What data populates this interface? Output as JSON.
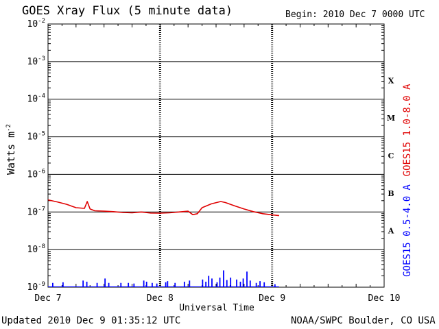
{
  "header": {
    "title": "GOES Xray Flux (5 minute data)",
    "begin": "Begin:  2010 Dec 7 0000 UTC"
  },
  "footer": {
    "updated": "Updated 2010 Dec  9 01:35:12 UTC",
    "source": "NOAA/SWPC Boulder, CO USA"
  },
  "colors": {
    "long_channel": "#e00000",
    "short_channel": "#0000ff",
    "background": "#ffffff",
    "axis": "#000000"
  },
  "chart_data": {
    "type": "line",
    "title": "GOES Xray Flux (5 minute data)",
    "xlabel": "Universal Time",
    "ylabel": "Watts m",
    "ylabel_superscript": "-2",
    "yscale": "log",
    "ylim": [
      1e-09,
      0.01
    ],
    "xlim": [
      0,
      72
    ],
    "x_units": "hours since 2010 Dec 7 0000 UTC",
    "x_ticks": [
      {
        "x": 0,
        "label": "Dec 7"
      },
      {
        "x": 24,
        "label": "Dec 8"
      },
      {
        "x": 48,
        "label": "Dec 9"
      },
      {
        "x": 72,
        "label": "Dec 10"
      }
    ],
    "y_ticks": [
      {
        "exp": -2,
        "base": "10",
        "sup": "-2"
      },
      {
        "exp": -3,
        "base": "10",
        "sup": "-3"
      },
      {
        "exp": -4,
        "base": "10",
        "sup": "-4"
      },
      {
        "exp": -5,
        "base": "10",
        "sup": "-5"
      },
      {
        "exp": -6,
        "base": "10",
        "sup": "-6"
      },
      {
        "exp": -7,
        "base": "10",
        "sup": "-7"
      },
      {
        "exp": -8,
        "base": "10",
        "sup": "-8"
      },
      {
        "exp": -9,
        "base": "10",
        "sup": "-9"
      }
    ],
    "flare_classes": [
      {
        "label": "X",
        "low": 0.0001,
        "high": 0.001
      },
      {
        "label": "M",
        "low": 1e-05,
        "high": 0.0001
      },
      {
        "label": "C",
        "low": 1e-06,
        "high": 1e-05
      },
      {
        "label": "B",
        "low": 1e-07,
        "high": 1e-06
      },
      {
        "label": "A",
        "low": 1e-08,
        "high": 1e-07
      }
    ],
    "grid": "horizontal at each decade; dashed verticals at day boundaries",
    "series": [
      {
        "name": "GOES15 1.0-8.0 A",
        "color": "#e00000",
        "x": [
          0,
          2,
          4,
          6,
          7.8,
          8.4,
          9,
          10,
          12,
          14,
          16,
          18,
          20,
          22,
          24,
          26,
          28,
          30,
          31,
          32,
          33,
          35,
          37,
          38,
          40,
          42,
          44,
          46,
          48,
          49.5
        ],
        "y": [
          2.1e-07,
          1.85e-07,
          1.6e-07,
          1.3e-07,
          1.25e-07,
          1.9e-07,
          1.2e-07,
          1.08e-07,
          1.05e-07,
          1.02e-07,
          9.7e-08,
          9.5e-08,
          1e-07,
          9.4e-08,
          9.3e-08,
          9.5e-08,
          1e-07,
          1.05e-07,
          8.5e-08,
          9e-08,
          1.3e-07,
          1.65e-07,
          1.9e-07,
          1.78e-07,
          1.45e-07,
          1.2e-07,
          1.02e-07,
          9e-08,
          8.4e-08,
          8e-08
        ]
      },
      {
        "name": "GOES15 0.5-4.0 A",
        "color": "#0000ff",
        "baseline": 1.05e-09,
        "x_end": 49.5,
        "spikes": [
          {
            "x": 1,
            "y": 1.3e-09
          },
          {
            "x": 3.2,
            "y": 1.35e-09
          },
          {
            "x": 7.5,
            "y": 1.5e-09
          },
          {
            "x": 8.3,
            "y": 1.4e-09
          },
          {
            "x": 10.5,
            "y": 1.3e-09
          },
          {
            "x": 12.2,
            "y": 1.7e-09
          },
          {
            "x": 13,
            "y": 1.3e-09
          },
          {
            "x": 15.6,
            "y": 1.3e-09
          },
          {
            "x": 17.2,
            "y": 1.3e-09
          },
          {
            "x": 18.4,
            "y": 1.25e-09
          },
          {
            "x": 20.5,
            "y": 1.5e-09
          },
          {
            "x": 21.1,
            "y": 1.4e-09
          },
          {
            "x": 22.3,
            "y": 1.3e-09
          },
          {
            "x": 23.3,
            "y": 1.25e-09
          },
          {
            "x": 25.2,
            "y": 1.35e-09
          },
          {
            "x": 25.6,
            "y": 1.45e-09
          },
          {
            "x": 27.2,
            "y": 1.3e-09
          },
          {
            "x": 29.2,
            "y": 1.4e-09
          },
          {
            "x": 30.3,
            "y": 1.5e-09
          },
          {
            "x": 33.1,
            "y": 1.6e-09
          },
          {
            "x": 33.8,
            "y": 1.4e-09
          },
          {
            "x": 34.4,
            "y": 2e-09
          },
          {
            "x": 35.1,
            "y": 1.7e-09
          },
          {
            "x": 36.2,
            "y": 1.35e-09
          },
          {
            "x": 36.8,
            "y": 1.8e-09
          },
          {
            "x": 37.6,
            "y": 2.8e-09
          },
          {
            "x": 38.3,
            "y": 1.55e-09
          },
          {
            "x": 39.1,
            "y": 1.8e-09
          },
          {
            "x": 40.4,
            "y": 1.6e-09
          },
          {
            "x": 41.2,
            "y": 1.4e-09
          },
          {
            "x": 41.8,
            "y": 1.7e-09
          },
          {
            "x": 42.6,
            "y": 2.6e-09
          },
          {
            "x": 43.3,
            "y": 1.5e-09
          },
          {
            "x": 44.6,
            "y": 1.3e-09
          },
          {
            "x": 45.4,
            "y": 1.45e-09
          },
          {
            "x": 46.3,
            "y": 1.35e-09
          },
          {
            "x": 48.6,
            "y": 1.2e-09
          }
        ]
      }
    ]
  }
}
